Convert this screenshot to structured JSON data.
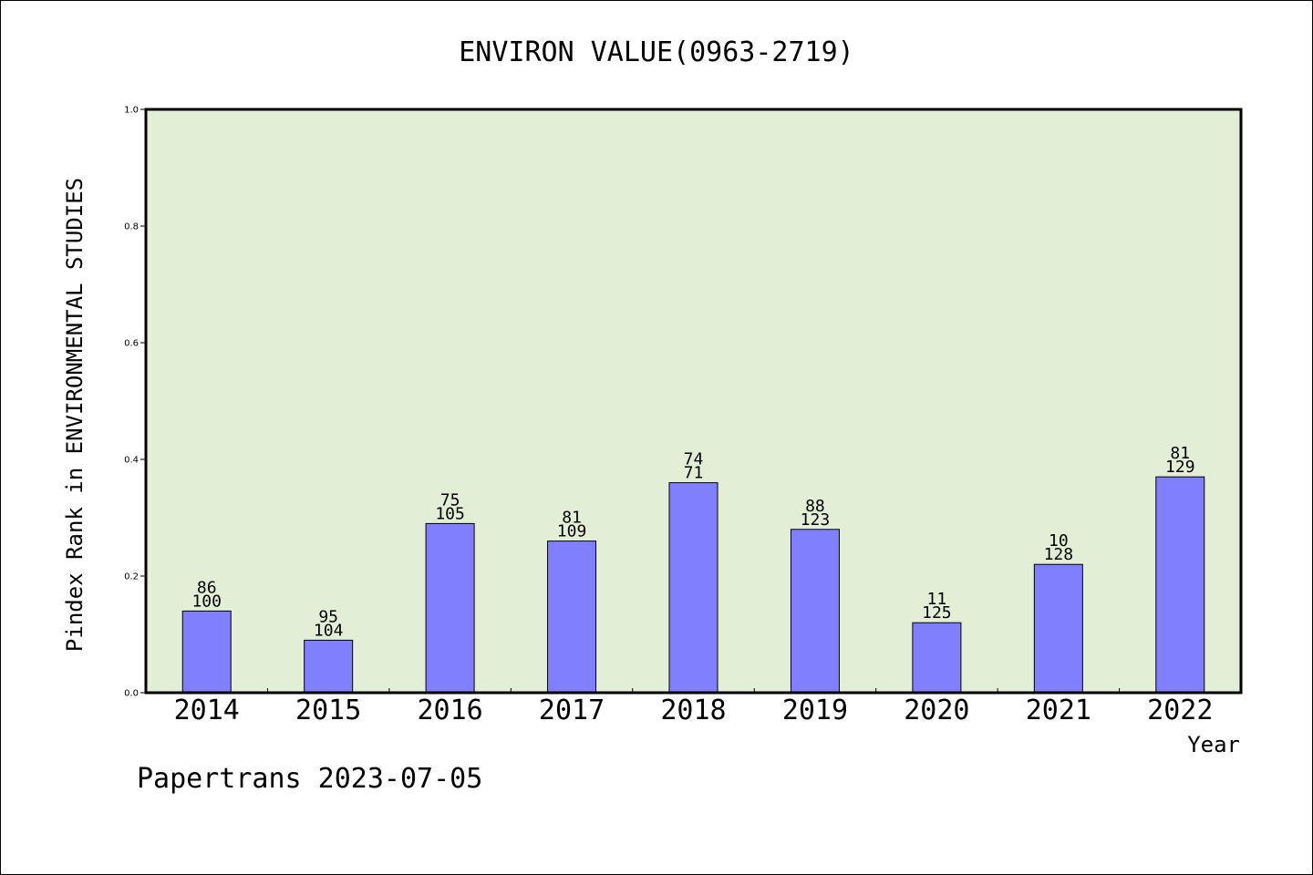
{
  "chart_data": {
    "type": "bar",
    "title": "ENVIRON VALUE(0963-2719)",
    "xlabel": "Year",
    "ylabel": "Pindex Rank in ENVIRONMENTAL STUDIES",
    "ylim": [
      0,
      1.0
    ],
    "yticks": [
      "0.0",
      "0.2",
      "0.4",
      "0.6",
      "0.8",
      "1.0"
    ],
    "categories": [
      "2014",
      "2015",
      "2016",
      "2017",
      "2018",
      "2019",
      "2020",
      "2021",
      "2022"
    ],
    "values": [
      0.14,
      0.09,
      0.29,
      0.26,
      0.36,
      0.28,
      0.12,
      0.22,
      0.37
    ],
    "label_top": [
      "86",
      "95",
      "75",
      "81",
      "74",
      "88",
      "11",
      "10",
      "81"
    ],
    "label_bottom": [
      "100",
      "104",
      "105",
      "109",
      "71",
      "123",
      "125",
      "128",
      "129"
    ],
    "grid": false,
    "colors": {
      "plot_bg": "#e2efd6",
      "bar": "#8080ff",
      "bar_edge": "#000000"
    }
  },
  "footer": {
    "text": "Papertrans 2023-07-05"
  }
}
